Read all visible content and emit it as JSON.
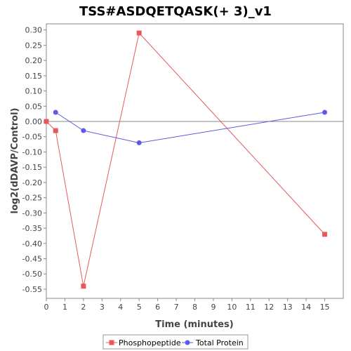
{
  "chart_data": {
    "type": "line",
    "title": "TSS#ASDQETQASK(+ 3)_v1",
    "xlabel": "Time (minutes)",
    "ylabel": "log2(dDAVP/Control)",
    "xlim": [
      0,
      16
    ],
    "ylim": [
      -0.58,
      0.32
    ],
    "xticks": [
      0,
      1,
      2,
      3,
      4,
      5,
      6,
      7,
      8,
      9,
      10,
      11,
      12,
      13,
      14,
      15
    ],
    "yticks": [
      0.3,
      0.25,
      0.2,
      0.15,
      0.1,
      0.05,
      0.0,
      -0.05,
      -0.1,
      -0.15,
      -0.2,
      -0.25,
      -0.3,
      -0.35,
      -0.4,
      -0.45,
      -0.5,
      -0.55
    ],
    "xtick_labels": [
      "0",
      "1",
      "2",
      "3",
      "4",
      "5",
      "6",
      "7",
      "8",
      "9",
      "10",
      "11",
      "12",
      "13",
      "14",
      "15"
    ],
    "ytick_labels": [
      "0.30",
      "0.25",
      "0.20",
      "0.15",
      "0.10",
      "0.05",
      "0.00",
      "-0.05",
      "-0.10",
      "-0.15",
      "-0.20",
      "-0.25",
      "-0.30",
      "-0.35",
      "-0.40",
      "-0.45",
      "-0.50",
      "-0.55"
    ],
    "zero_line": true,
    "grid": false,
    "legend_position": "bottom",
    "series": [
      {
        "name": "Phosphopeptide",
        "color": "#e8585a",
        "marker": "square",
        "x": [
          0,
          0.5,
          2,
          5,
          15
        ],
        "y": [
          0.0,
          -0.03,
          -0.54,
          0.29,
          -0.37
        ]
      },
      {
        "name": "Total Protein",
        "color": "#5b5be8",
        "marker": "circle",
        "x": [
          0.5,
          2,
          5,
          15
        ],
        "y": [
          0.03,
          -0.03,
          -0.07,
          0.03
        ]
      }
    ]
  }
}
